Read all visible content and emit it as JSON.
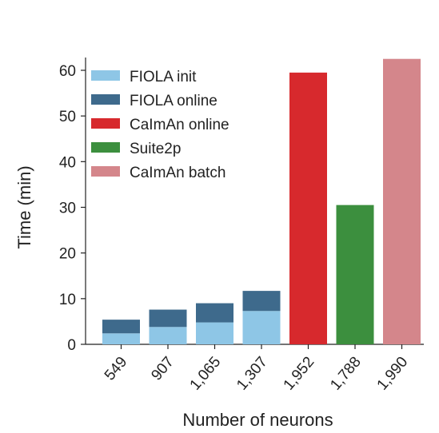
{
  "chart_data": {
    "type": "bar",
    "stacked": true,
    "title": "",
    "xlabel": "Number of neurons",
    "ylabel": "Time (min)",
    "ylim": [
      0,
      63
    ],
    "yticks": [
      0,
      10,
      20,
      30,
      40,
      50,
      60
    ],
    "categories": [
      "549",
      "907",
      "1,065",
      "1,307",
      "1,952",
      "1,788",
      "1,990"
    ],
    "series": [
      {
        "name": "FIOLA init",
        "color": "#8ec6e6",
        "values": [
          2.4,
          3.8,
          4.8,
          7.3,
          0,
          0,
          0
        ]
      },
      {
        "name": "FIOLA online",
        "color": "#3e6a8c",
        "values": [
          3.0,
          3.8,
          4.2,
          4.4,
          0,
          0,
          0
        ]
      },
      {
        "name": "CaImAn online",
        "color": "#d7292d",
        "values": [
          0,
          0,
          0,
          0,
          59.5,
          0,
          0
        ]
      },
      {
        "name": "Suite2p",
        "color": "#3c8f3e",
        "values": [
          0,
          0,
          0,
          0,
          0,
          30.5,
          0
        ]
      },
      {
        "name": "CaImAn batch",
        "color": "#d4868b",
        "values": [
          0,
          0,
          0,
          0,
          0,
          0,
          62.5
        ]
      }
    ],
    "legend_position": "top-left",
    "grid": false
  }
}
